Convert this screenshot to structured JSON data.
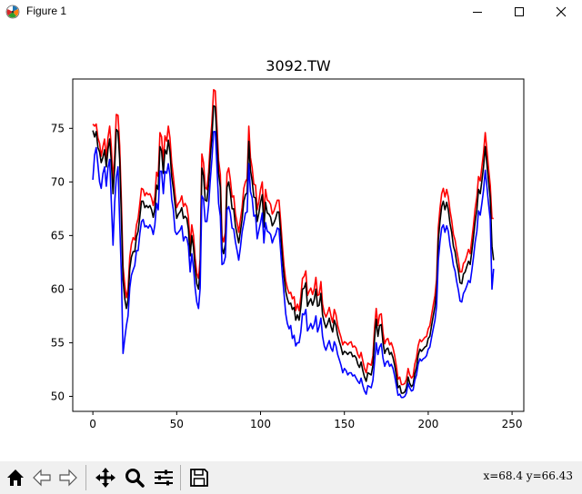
{
  "window": {
    "title": "Figure 1"
  },
  "chart_data": {
    "type": "line",
    "title": "3092.TW",
    "xlabel": "",
    "ylabel": "",
    "xlim": [
      -12,
      257
    ],
    "ylim": [
      48.6,
      79.6
    ],
    "xticks": [
      0,
      50,
      100,
      150,
      200,
      250
    ],
    "yticks": [
      50,
      55,
      60,
      65,
      70,
      75
    ],
    "grid": false,
    "series": [
      {
        "color": "#ff0000",
        "values": [
          75.4,
          75.2,
          75.4,
          74.1,
          73.6,
          72.4,
          73.3,
          74.0,
          72.2,
          74.1,
          75.2,
          73.3,
          70.1,
          72.5,
          76.3,
          76.2,
          73.4,
          68.2,
          62.1,
          60.4,
          59.2,
          60.0,
          63.0,
          64.2,
          64.8,
          64.6,
          66.0,
          66.6,
          68.0,
          69.4,
          69.3,
          68.7,
          69.0,
          68.8,
          68.9,
          68.5,
          67.8,
          68.6,
          70.9,
          70.5,
          74.6,
          74.2,
          71.9,
          74.3,
          73.8,
          75.2,
          74.1,
          71.8,
          70.5,
          68.9,
          67.6,
          68.0,
          68.2,
          68.7,
          67.7,
          68.0,
          67.7,
          66.7,
          64.1,
          66.0,
          65.0,
          62.9,
          61.5,
          61.0,
          62.8,
          72.6,
          71.8,
          69.5,
          69.3,
          70.9,
          73.6,
          75.5,
          78.6,
          78.5,
          75.2,
          72.0,
          70.7,
          65.0,
          64.4,
          65.3,
          70.8,
          71.3,
          70.2,
          68.6,
          68.7,
          67.0,
          66.2,
          65.3,
          66.5,
          67.6,
          69.4,
          70.0,
          70.3,
          75.2,
          72.3,
          71.3,
          69.8,
          69.7,
          67.4,
          68.2,
          69.3,
          70.0,
          66.9,
          69.3,
          68.3,
          68.2,
          67.9,
          67.0,
          67.3,
          67.8,
          68.3,
          68.3,
          66.4,
          64.1,
          62.2,
          60.8,
          60.1,
          59.6,
          59.7,
          59.1,
          59.3,
          58.0,
          58.6,
          58.0,
          59.3,
          61.0,
          61.2,
          61.7,
          59.4,
          59.8,
          60.1,
          59.5,
          60.0,
          61.1,
          59.4,
          59.5,
          60.7,
          58.6,
          57.8,
          57.4,
          57.8,
          58.3,
          57.5,
          56.9,
          58.1,
          57.6,
          56.6,
          56.0,
          55.5,
          54.8,
          55.1,
          55.0,
          54.8,
          55.0,
          55.1,
          54.6,
          54.7,
          54.5,
          53.9,
          53.6,
          54.1,
          53.3,
          52.6,
          52.2,
          53.1,
          53.0,
          52.9,
          53.8,
          56.4,
          58.2,
          56.6,
          57.6,
          57.7,
          56.0,
          54.9,
          55.3,
          55.4,
          54.8,
          55.0,
          54.5,
          53.8,
          52.8,
          51.6,
          51.8,
          51.1,
          51.1,
          51.2,
          51.6,
          52.6,
          52.0,
          51.7,
          51.9,
          53.0,
          53.6,
          54.7,
          55.3,
          55.1,
          55.3,
          55.5,
          55.6,
          56.3,
          56.6,
          57.6,
          58.5,
          59.4,
          60.9,
          65.7,
          67.5,
          68.9,
          69.4,
          68.6,
          69.3,
          68.6,
          67.3,
          66.4,
          65.1,
          64.6,
          63.6,
          62.7,
          61.6,
          61.6,
          62.4,
          62.6,
          63.1,
          63.7,
          63.3,
          64.6,
          66.0,
          67.5,
          68.6,
          70.5,
          70.1,
          71.4,
          72.7,
          74.6,
          73.0,
          71.2,
          69.7,
          66.6,
          66.6
        ]
      },
      {
        "color": "#000000",
        "values": [
          74.8,
          74.2,
          74.7,
          73.2,
          72.8,
          71.8,
          72.3,
          73.0,
          71.4,
          73.0,
          74.0,
          71.9,
          68.9,
          71.4,
          74.9,
          74.7,
          72.1,
          66.7,
          60.9,
          59.1,
          58.2,
          59.0,
          61.9,
          63.0,
          63.5,
          63.5,
          64.9,
          65.4,
          66.8,
          68.2,
          68.2,
          67.6,
          67.8,
          67.6,
          67.8,
          67.4,
          66.7,
          67.5,
          69.7,
          69.3,
          73.3,
          72.9,
          70.8,
          73.0,
          72.6,
          73.9,
          72.8,
          70.5,
          69.4,
          67.9,
          66.6,
          67.0,
          67.2,
          67.6,
          66.6,
          66.8,
          66.6,
          65.6,
          63.1,
          65.0,
          63.9,
          61.9,
          60.5,
          60.0,
          61.8,
          71.3,
          70.6,
          68.3,
          68.2,
          69.8,
          72.3,
          74.2,
          77.1,
          77.0,
          73.9,
          70.8,
          69.5,
          63.9,
          63.3,
          64.2,
          69.5,
          70.0,
          69.0,
          67.5,
          67.5,
          65.9,
          65.1,
          64.3,
          65.4,
          66.5,
          68.2,
          68.8,
          69.0,
          73.8,
          71.1,
          70.1,
          68.6,
          68.5,
          66.3,
          67.1,
          68.1,
          68.8,
          65.8,
          68.1,
          67.1,
          67.0,
          66.7,
          65.9,
          66.2,
          66.6,
          67.2,
          67.2,
          65.3,
          63.0,
          61.2,
          59.8,
          59.1,
          58.6,
          58.7,
          58.1,
          58.3,
          57.1,
          57.6,
          57.1,
          58.3,
          60.0,
          60.1,
          60.6,
          58.4,
          58.8,
          59.1,
          58.5,
          59.0,
          60.0,
          58.4,
          58.5,
          59.6,
          57.6,
          56.9,
          56.4,
          56.8,
          57.3,
          56.5,
          56.0,
          57.1,
          56.6,
          55.7,
          55.1,
          54.6,
          53.9,
          54.2,
          54.1,
          53.9,
          54.1,
          54.1,
          53.7,
          53.8,
          53.6,
          53.0,
          52.7,
          53.2,
          52.4,
          51.8,
          51.4,
          52.2,
          52.1,
          52.0,
          52.9,
          55.4,
          57.2,
          55.6,
          56.6,
          56.7,
          55.1,
          54.0,
          54.4,
          54.5,
          53.9,
          54.1,
          53.6,
          52.9,
          51.9,
          50.8,
          51.0,
          50.3,
          50.3,
          50.4,
          50.8,
          51.8,
          51.2,
          50.9,
          51.1,
          52.1,
          52.7,
          53.8,
          54.4,
          54.2,
          54.4,
          54.6,
          54.7,
          55.4,
          55.6,
          56.6,
          57.5,
          58.4,
          59.9,
          64.6,
          66.3,
          67.7,
          68.2,
          67.4,
          68.1,
          67.4,
          66.1,
          65.3,
          64.0,
          63.5,
          62.5,
          61.7,
          60.6,
          60.5,
          61.4,
          61.6,
          62.1,
          62.6,
          62.3,
          63.5,
          64.9,
          66.3,
          67.4,
          69.3,
          68.9,
          70.1,
          71.4,
          73.3,
          71.7,
          70.0,
          68.5,
          64.0,
          62.7
        ]
      },
      {
        "color": "#0000ff",
        "values": [
          70.2,
          72.5,
          73.2,
          71.6,
          70.0,
          69.4,
          70.8,
          71.4,
          69.6,
          71.3,
          72.1,
          68.2,
          64.1,
          68.1,
          70.4,
          71.4,
          66.3,
          61.3,
          54.0,
          55.4,
          56.6,
          57.5,
          60.1,
          61.3,
          61.8,
          62.2,
          63.6,
          63.6,
          65.2,
          66.3,
          66.5,
          65.8,
          65.9,
          65.7,
          66.0,
          65.7,
          65.1,
          66.0,
          68.0,
          67.4,
          71.0,
          71.0,
          68.9,
          71.0,
          70.8,
          71.7,
          70.6,
          68.4,
          67.4,
          65.4,
          65.1,
          65.3,
          65.5,
          65.9,
          64.5,
          64.9,
          64.8,
          64.0,
          61.6,
          63.3,
          62.0,
          60.1,
          58.8,
          58.2,
          60.1,
          68.7,
          68.4,
          66.3,
          66.3,
          67.8,
          70.1,
          72.1,
          74.7,
          74.7,
          71.4,
          68.0,
          66.8,
          62.3,
          62.4,
          63.0,
          67.4,
          67.7,
          67.1,
          65.7,
          65.6,
          64.4,
          63.6,
          62.7,
          63.9,
          65.3,
          66.2,
          67.1,
          67.2,
          71.7,
          69.1,
          68.5,
          66.8,
          66.9,
          64.7,
          65.5,
          66.2,
          67.1,
          64.3,
          66.2,
          65.4,
          65.3,
          65.1,
          64.3,
          64.8,
          65.1,
          65.7,
          65.6,
          63.6,
          61.3,
          59.6,
          57.7,
          56.8,
          56.3,
          56.6,
          55.4,
          55.7,
          54.7,
          55.0,
          55.0,
          56.0,
          57.7,
          57.6,
          58.1,
          56.1,
          56.4,
          56.8,
          56.3,
          56.7,
          57.5,
          56.0,
          56.5,
          57.3,
          55.6,
          54.7,
          54.3,
          54.8,
          55.2,
          54.5,
          54.2,
          55.1,
          54.7,
          53.9,
          53.4,
          52.9,
          52.2,
          52.6,
          52.4,
          52.0,
          52.2,
          52.2,
          51.9,
          52.0,
          51.7,
          51.4,
          51.2,
          51.7,
          51.0,
          50.5,
          50.2,
          51.0,
          50.9,
          50.8,
          51.5,
          53.2,
          55.0,
          53.9,
          54.6,
          54.9,
          53.6,
          52.8,
          53.2,
          53.3,
          52.8,
          53.0,
          52.6,
          51.9,
          51.0,
          50.1,
          50.2,
          49.9,
          49.9,
          50.0,
          50.3,
          51.2,
          50.8,
          50.5,
          50.6,
          51.5,
          52.0,
          53.0,
          53.5,
          53.3,
          53.5,
          53.6,
          53.8,
          54.4,
          54.6,
          55.5,
          56.3,
          57.1,
          58.4,
          62.7,
          64.4,
          65.7,
          66.0,
          65.3,
          65.9,
          65.4,
          64.1,
          63.3,
          62.2,
          61.7,
          60.7,
          59.9,
          58.9,
          58.8,
          59.6,
          59.9,
          60.3,
          60.8,
          60.6,
          61.7,
          63.0,
          64.4,
          65.4,
          67.3,
          66.9,
          68.0,
          69.2,
          71.1,
          69.6,
          67.9,
          66.5,
          60.0,
          61.9
        ]
      }
    ]
  },
  "toolbar": {
    "buttons": [
      {
        "name": "home-icon"
      },
      {
        "name": "back-arrow-icon"
      },
      {
        "name": "forward-arrow-icon"
      },
      {
        "name": "pan-move-icon"
      },
      {
        "name": "zoom-magnifier-icon"
      },
      {
        "name": "subplots-config-icon"
      },
      {
        "name": "save-floppy-icon"
      }
    ],
    "coords": "x=68.4 y=66.43"
  }
}
